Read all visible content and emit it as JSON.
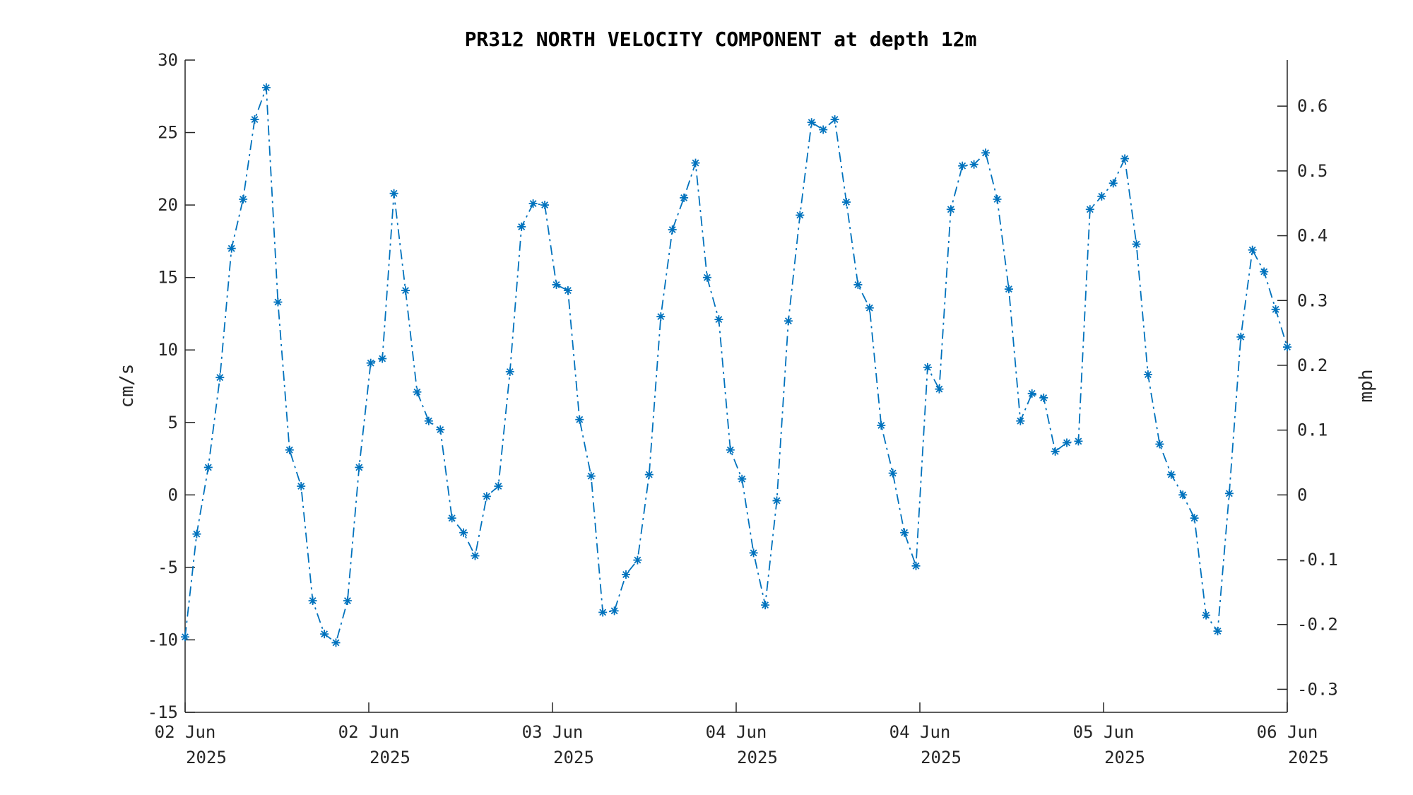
{
  "colors": {
    "series": "#0072BD",
    "axis": "#262626",
    "title": "#000000"
  },
  "chart_data": {
    "type": "line",
    "title": "PR312 NORTH VELOCITY COMPONENT at depth 12m",
    "ylabel": "cm/s",
    "ylabel_right": "mph",
    "ylim": [
      -15,
      30
    ],
    "y_ticks": [
      "-15",
      "-10",
      "-5",
      "0",
      "5",
      "10",
      "15",
      "20",
      "25",
      "30"
    ],
    "y_right_ticks": [
      "-0.3",
      "-0.2",
      "-0.1",
      "0",
      "0.1",
      "0.2",
      "0.3",
      "0.4",
      "0.5",
      "0.6"
    ],
    "y_right_conversion": 0.0223694,
    "xlim": [
      0,
      6
    ],
    "x_ticks": [
      {
        "x": 0,
        "line1": "02 Jun",
        "line2": "2025"
      },
      {
        "x": 1,
        "line1": "02 Jun",
        "line2": "2025"
      },
      {
        "x": 2,
        "line1": "03 Jun",
        "line2": "2025"
      },
      {
        "x": 3,
        "line1": "04 Jun",
        "line2": "2025"
      },
      {
        "x": 4,
        "line1": "04 Jun",
        "line2": "2025"
      },
      {
        "x": 5,
        "line1": "05 Jun",
        "line2": "2025"
      },
      {
        "x": 6,
        "line1": "06 Jun",
        "line2": "2025"
      }
    ],
    "marker": "asterisk",
    "line_style": "dash-dot",
    "series": [
      {
        "values": [
          -9.8,
          -2.7,
          1.9,
          8.1,
          17.0,
          20.4,
          25.9,
          28.1,
          13.3,
          3.1,
          0.6,
          -7.3,
          -9.6,
          -10.2,
          -7.3,
          1.9,
          9.1,
          9.4,
          20.8,
          14.1,
          7.1,
          5.1,
          4.5,
          -1.6,
          -2.6,
          -4.2,
          -0.1,
          0.6,
          8.5,
          18.5,
          20.1,
          20.0,
          14.5,
          14.1,
          5.2,
          1.3,
          -8.1,
          -8.0,
          -5.5,
          -4.5,
          1.4,
          12.3,
          18.3,
          20.5,
          22.9,
          15.0,
          12.1,
          3.1,
          1.1,
          -4.0,
          -7.6,
          -0.4,
          12.0,
          19.3,
          25.7,
          25.2,
          25.9,
          20.2,
          14.5,
          12.9,
          4.8,
          1.5,
          -2.6,
          -4.9,
          8.8,
          7.3,
          19.7,
          22.7,
          22.8,
          23.6,
          20.4,
          14.2,
          5.1,
          7.0,
          6.7,
          3.0,
          3.6,
          3.7,
          19.7,
          20.6,
          21.5,
          23.2,
          17.3,
          8.3,
          3.5,
          1.4,
          0.0,
          -1.6,
          -8.3,
          -9.4,
          0.1,
          10.9,
          16.9,
          15.4,
          12.8,
          10.2
        ]
      }
    ]
  }
}
